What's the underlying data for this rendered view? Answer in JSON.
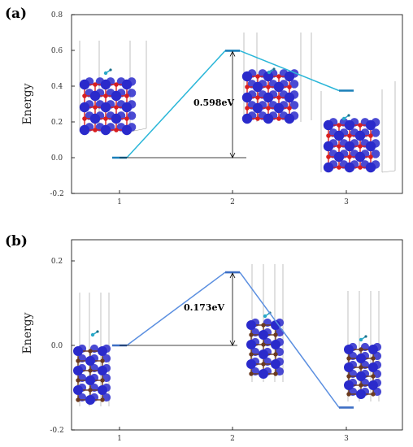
{
  "chart_data": [
    {
      "panel_label": "(a)",
      "type": "line",
      "ylabel": "Energy",
      "x": [
        1,
        2,
        3
      ],
      "xtick_labels": [
        "1",
        "2",
        "3"
      ],
      "ylim": [
        -0.2,
        0.8
      ],
      "yticks": [
        -0.2,
        0.0,
        0.2,
        0.4,
        0.6,
        0.8
      ],
      "ytick_labels": [
        "-0.2",
        "0.0",
        "0.2",
        "0.4",
        "0.6",
        "0.8"
      ],
      "values": [
        0.0,
        0.598,
        0.375
      ],
      "barrier_label": "0.598eV",
      "color": "#29b6d8",
      "level_color": "#1a7fb8"
    },
    {
      "panel_label": "(b)",
      "type": "line",
      "ylabel": "Energy",
      "x": [
        1,
        2,
        3
      ],
      "xtick_labels": [
        "1",
        "2",
        "3"
      ],
      "ylim": [
        -0.2,
        0.25
      ],
      "yticks": [
        -0.2,
        0.0,
        0.2
      ],
      "ytick_labels": [
        "-0.2",
        "0.0",
        "0.2"
      ],
      "values": [
        0.0,
        0.173,
        -0.147
      ],
      "barrier_label": "0.173eV",
      "color": "#5b8fe0",
      "level_color": "#3d6fc4"
    }
  ],
  "colors": {
    "atom_large": "#2a2acb",
    "atom_small_a": "#d81e1e",
    "atom_small_b": "#6b3a1e",
    "adsorbate": "#2aa8c8"
  }
}
